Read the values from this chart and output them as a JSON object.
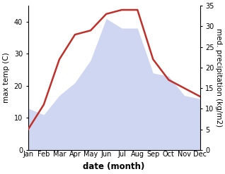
{
  "months": [
    "Jan",
    "Feb",
    "Mar",
    "Apr",
    "May",
    "Jun",
    "Jul",
    "Aug",
    "Sep",
    "Oct",
    "Nov",
    "Dec"
  ],
  "temperature": [
    13,
    11,
    17,
    21,
    28,
    41,
    38,
    38,
    24,
    23,
    17,
    16
  ],
  "precipitation": [
    5,
    11,
    22,
    28,
    29,
    33,
    34,
    34,
    22,
    17,
    15,
    13
  ],
  "temp_color": "#b0bce8",
  "temp_fill_alpha": 0.6,
  "precip_color": "#c0302a",
  "precip_linewidth": 1.8,
  "ylabel_left": "max temp (C)",
  "ylabel_right": "med. precipitation (kg/m2)",
  "xlabel": "date (month)",
  "ylim_left": [
    0,
    45
  ],
  "ylim_right": [
    0,
    35
  ],
  "yticks_left": [
    0,
    10,
    20,
    30,
    40
  ],
  "yticks_right": [
    0,
    5,
    10,
    15,
    20,
    25,
    30,
    35
  ],
  "background_color": "#ffffff",
  "axis_fontsize": 7.5,
  "tick_fontsize": 7.0,
  "xlabel_fontsize": 8.5
}
